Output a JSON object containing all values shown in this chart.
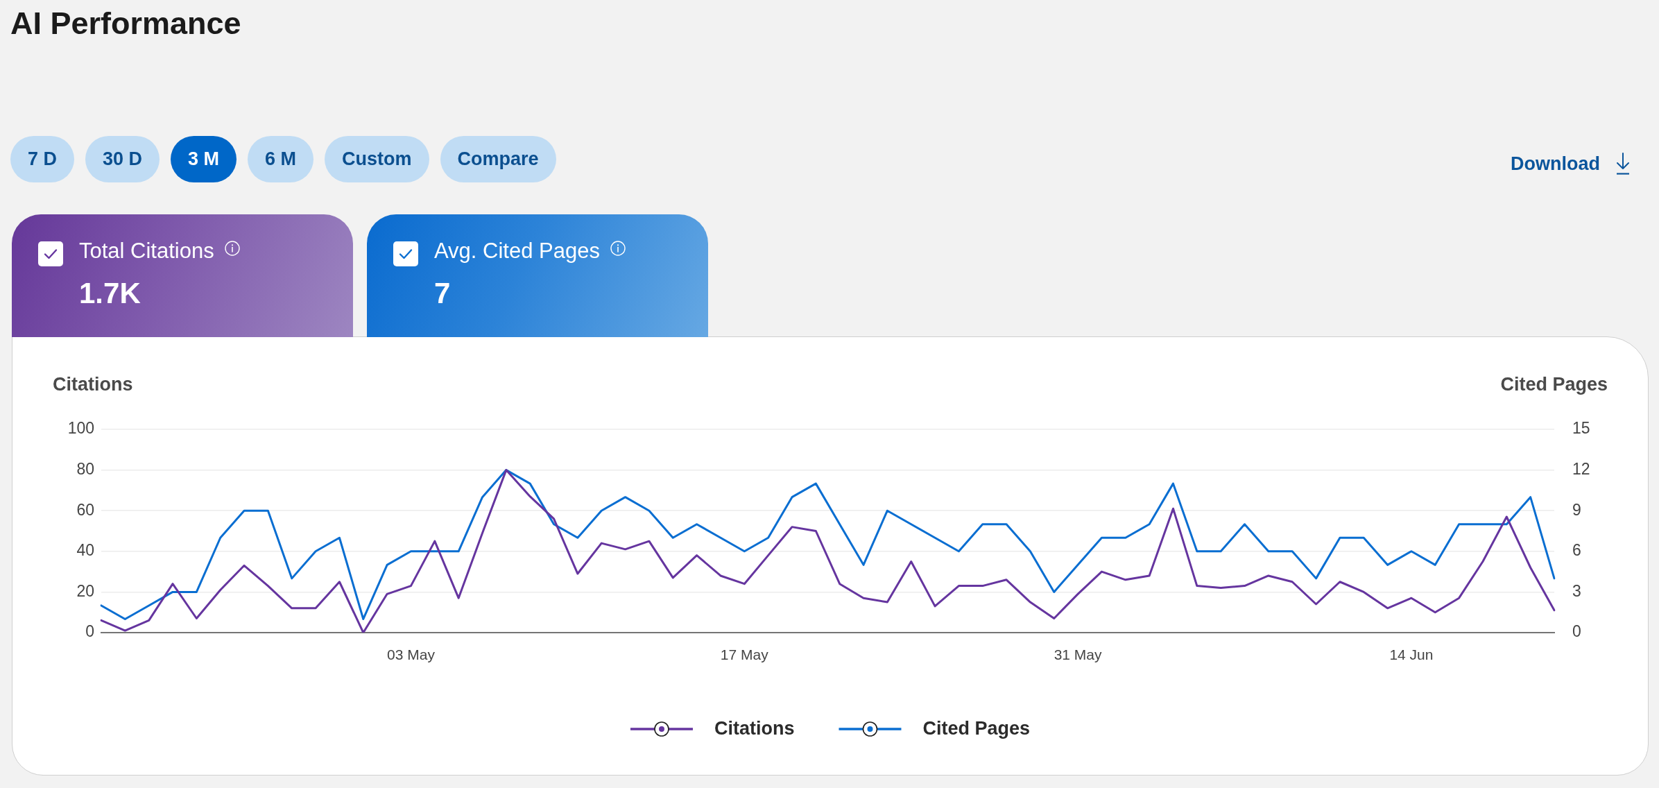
{
  "chart_data": [
    {
      "type": "other",
      "title": "AI Performance",
      "annotations": [
        "7 D",
        "30 D",
        "3 M",
        "6 M",
        "Custom",
        "Compare",
        "Download"
      ]
    },
    {
      "type": "other",
      "title": "Total Citations",
      "annotations": [
        "1.7K"
      ]
    },
    {
      "type": "other",
      "title": "Avg. Cited Pages",
      "annotations": [
        "7"
      ]
    },
    {
      "type": "line",
      "ylabel": "Citations",
      "y2label": "Cited Pages",
      "categories": [
        null,
        null,
        null,
        null,
        null,
        null,
        null,
        null,
        null,
        null,
        null,
        null,
        null,
        "03 May",
        null,
        null,
        null,
        null,
        null,
        null,
        null,
        null,
        null,
        null,
        null,
        null,
        null,
        "17 May",
        null,
        null,
        null,
        null,
        null,
        null,
        null,
        null,
        null,
        null,
        null,
        null,
        null,
        "31 May",
        null,
        null,
        null,
        null,
        null,
        null,
        null,
        null,
        null,
        null,
        null,
        null,
        null,
        "14 Jun",
        null,
        null,
        null,
        null,
        null,
        null
      ],
      "series": [
        {
          "name": "Citations",
          "color": "#65359f",
          "values": [
            6,
            1,
            6,
            24,
            7,
            21,
            33,
            23,
            12,
            12,
            25,
            0,
            19,
            23,
            45,
            17,
            49,
            80,
            67,
            56,
            29,
            44,
            41,
            45,
            27,
            38,
            28,
            24,
            38,
            52,
            50,
            24,
            17,
            15,
            35,
            13,
            23,
            23,
            26,
            15,
            7,
            19,
            30,
            26,
            28,
            61,
            23,
            22,
            23,
            28,
            25,
            14,
            25,
            20,
            12,
            17,
            10,
            17,
            35,
            57,
            32,
            11
          ]
        },
        {
          "name": "Cited Pages",
          "color": "#0a6ed1",
          "axis": "y2",
          "values": [
            2,
            1,
            2,
            3,
            3,
            7,
            9,
            9,
            4,
            6,
            7,
            1,
            5,
            6,
            6,
            6,
            10,
            12,
            11,
            8,
            7,
            9,
            10,
            9,
            7,
            8,
            7,
            6,
            7,
            10,
            11,
            8,
            5,
            9,
            8,
            7,
            6,
            8,
            8,
            6,
            3,
            5,
            7,
            7,
            8,
            11,
            6,
            6,
            8,
            6,
            6,
            4,
            7,
            7,
            5,
            6,
            5,
            8,
            8,
            8,
            10,
            4
          ]
        }
      ],
      "ylim": [
        0,
        100
      ],
      "yticks": [
        0,
        20,
        40,
        60,
        80,
        100
      ],
      "y2lim": [
        0,
        15
      ],
      "y2ticks": [
        0,
        3,
        6,
        9,
        12,
        15
      ],
      "grid": "y",
      "legend": "bottom"
    }
  ]
}
